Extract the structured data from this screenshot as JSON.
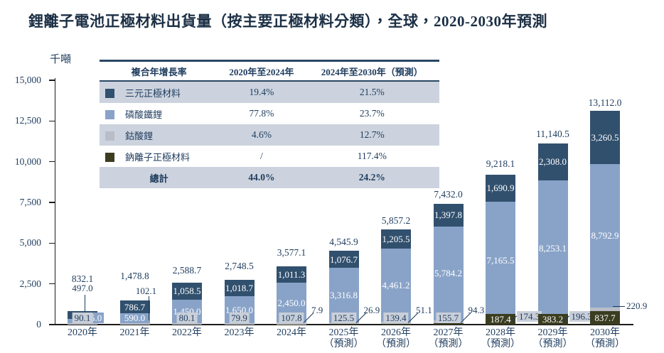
{
  "title": "鋰離子電池正極材料出貨量（按主要正極材料分類），全球，2020-2030年預測",
  "unit_label": "千噸",
  "legend_table": {
    "header": [
      "複合年增長率",
      "2020年至2024年",
      "2024年至2030年（預測）"
    ],
    "rows": [
      {
        "key": "ternary",
        "label": "三元正極材料",
        "swatch": "#31506e",
        "cagr_2020_2024": "19.4%",
        "cagr_2024_2030": "21.5%"
      },
      {
        "key": "lfp",
        "label": "磷酸鐵鋰",
        "swatch": "#89a3c8",
        "cagr_2020_2024": "77.8%",
        "cagr_2024_2030": "23.7%"
      },
      {
        "key": "lco",
        "label": "鈷酸鋰",
        "swatch": "#b8bdc7",
        "cagr_2020_2024": "4.6%",
        "cagr_2024_2030": "12.7%"
      },
      {
        "key": "sodium",
        "label": "鈉離子正極材料",
        "swatch": "#3b3d20",
        "cagr_2020_2024": "/",
        "cagr_2024_2030": "117.4%"
      }
    ],
    "total_row": {
      "label": "總計",
      "cagr_2020_2024": "44.0%",
      "cagr_2024_2030": "24.2%"
    }
  },
  "chart_data": {
    "type": "bar",
    "stacked": true,
    "title": "鋰離子電池正極材料出貨量（按主要正極材料分類），全球，2020-2030年預測",
    "ylabel": "千噸",
    "ylim": [
      0,
      15000
    ],
    "grid": false,
    "yticks": [
      0,
      2500,
      5000,
      7500,
      10000,
      12500,
      15000
    ],
    "ytick_labels": [
      "0",
      "2,500",
      "5,000",
      "7,500",
      "10,000",
      "12,500",
      "15,000"
    ],
    "categories": [
      "2020年",
      "2021年",
      "2022年",
      "2023年",
      "2024年",
      "2025年",
      "2026年",
      "2027年",
      "2028年",
      "2029年",
      "2030年"
    ],
    "is_forecast": [
      0,
      0,
      0,
      0,
      0,
      1,
      1,
      1,
      1,
      1,
      1
    ],
    "forecast_suffix": "（預測）",
    "stack_order_bottom_to_top": [
      "sodium",
      "lco",
      "lfp",
      "ternary"
    ],
    "series": [
      {
        "key": "ternary",
        "name": "三元正極材料",
        "color": "#31506e",
        "values": [
          497.0,
          786.7,
          1058.5,
          1018.7,
          1011.3,
          1076.7,
          1205.5,
          1397.8,
          1690.9,
          2308.0,
          3260.5
        ]
      },
      {
        "key": "lfp",
        "name": "磷酸鐵鋰",
        "color": "#89a3c8",
        "values": [
          245.0,
          590.0,
          1450.0,
          1650.0,
          2450.0,
          3316.8,
          4461.2,
          5784.2,
          7165.5,
          8253.1,
          8792.9
        ]
      },
      {
        "key": "lco",
        "name": "鈷酸鋰",
        "color": "#b8bdc7",
        "values": [
          90.1,
          102.1,
          80.1,
          79.9,
          107.8,
          125.5,
          139.4,
          155.7,
          174.3,
          196.3,
          220.9
        ]
      },
      {
        "key": "sodium",
        "name": "鈉離子正極材料",
        "color": "#3b3d20",
        "values": [
          0,
          0,
          0,
          0,
          7.9,
          26.9,
          51.1,
          94.3,
          187.4,
          383.2,
          837.7
        ]
      }
    ],
    "totals": [
      832.1,
      1478.8,
      2588.7,
      2748.5,
      3577.1,
      4545.9,
      5857.2,
      7432.0,
      9218.1,
      11140.5,
      13112.0
    ],
    "total_labels": [
      "832.1",
      "1,478.8",
      "2,588.7",
      "2,748.5",
      "3,577.1",
      "4,545.9",
      "5,857.2",
      "7,432.0",
      "9,218.1",
      "11,140.5",
      "13,112.0"
    ],
    "value_labels": [
      {
        "y": 0,
        "s": "ternary",
        "t": "497.0",
        "m": "above-leader"
      },
      {
        "y": 0,
        "s": "lfp",
        "t": "245.0",
        "m": "box-right"
      },
      {
        "y": 0,
        "s": "lco",
        "t": "90.1",
        "m": "base-box"
      },
      {
        "y": 1,
        "s": "ternary",
        "t": "786.7",
        "m": "inside"
      },
      {
        "y": 1,
        "s": "lfp",
        "t": "590.0",
        "m": "inside"
      },
      {
        "y": 1,
        "s": "lco",
        "t": "102.1",
        "m": "callout-top"
      },
      {
        "y": 2,
        "s": "ternary",
        "t": "1,058.5",
        "m": "inside"
      },
      {
        "y": 2,
        "s": "lfp",
        "t": "1,450.0",
        "m": "inside"
      },
      {
        "y": 2,
        "s": "lco",
        "t": "80.1",
        "m": "base-box"
      },
      {
        "y": 3,
        "s": "ternary",
        "t": "1,018.7",
        "m": "inside"
      },
      {
        "y": 3,
        "s": "lfp",
        "t": "1,650.0",
        "m": "inside"
      },
      {
        "y": 3,
        "s": "lco",
        "t": "79.9",
        "m": "base-box"
      },
      {
        "y": 4,
        "s": "ternary",
        "t": "1,011.3",
        "m": "inside"
      },
      {
        "y": 4,
        "s": "lfp",
        "t": "2,450.0",
        "m": "inside"
      },
      {
        "y": 4,
        "s": "lco",
        "t": "107.8",
        "m": "base-box"
      },
      {
        "y": 4,
        "s": "sodium",
        "t": "7.9",
        "m": "callout-diag"
      },
      {
        "y": 5,
        "s": "ternary",
        "t": "1,076.7",
        "m": "inside"
      },
      {
        "y": 5,
        "s": "lfp",
        "t": "3,316.8",
        "m": "inside"
      },
      {
        "y": 5,
        "s": "lco",
        "t": "125.5",
        "m": "base-box"
      },
      {
        "y": 5,
        "s": "sodium",
        "t": "26.9",
        "m": "callout-diag"
      },
      {
        "y": 6,
        "s": "ternary",
        "t": "1,205.5",
        "m": "inside"
      },
      {
        "y": 6,
        "s": "lfp",
        "t": "4,461.2",
        "m": "inside"
      },
      {
        "y": 6,
        "s": "lco",
        "t": "139.4",
        "m": "base-box"
      },
      {
        "y": 6,
        "s": "sodium",
        "t": "51.1",
        "m": "callout-diag"
      },
      {
        "y": 7,
        "s": "ternary",
        "t": "1,397.8",
        "m": "inside"
      },
      {
        "y": 7,
        "s": "lfp",
        "t": "5,784.2",
        "m": "inside"
      },
      {
        "y": 7,
        "s": "lco",
        "t": "155.7",
        "m": "base-box"
      },
      {
        "y": 7,
        "s": "sodium",
        "t": "94.3",
        "m": "callout-diag"
      },
      {
        "y": 8,
        "s": "ternary",
        "t": "1,690.9",
        "m": "inside"
      },
      {
        "y": 8,
        "s": "lfp",
        "t": "7,165.5",
        "m": "inside"
      },
      {
        "y": 8,
        "s": "sodium",
        "t": "187.4",
        "m": "base-box"
      },
      {
        "y": 8,
        "s": "lco",
        "t": "174.3",
        "m": "callout-base"
      },
      {
        "y": 9,
        "s": "ternary",
        "t": "2,308.0",
        "m": "inside"
      },
      {
        "y": 9,
        "s": "lfp",
        "t": "8,253.1",
        "m": "inside"
      },
      {
        "y": 9,
        "s": "sodium",
        "t": "383.2",
        "m": "base-box"
      },
      {
        "y": 9,
        "s": "lco",
        "t": "196.3",
        "m": "callout-base"
      },
      {
        "y": 10,
        "s": "ternary",
        "t": "3,260.5",
        "m": "inside"
      },
      {
        "y": 10,
        "s": "lfp",
        "t": "8,792.9",
        "m": "inside"
      },
      {
        "y": 10,
        "s": "sodium",
        "t": "837.7",
        "m": "base-box"
      },
      {
        "y": 10,
        "s": "lco",
        "t": "220.9",
        "m": "callout-h"
      }
    ]
  }
}
